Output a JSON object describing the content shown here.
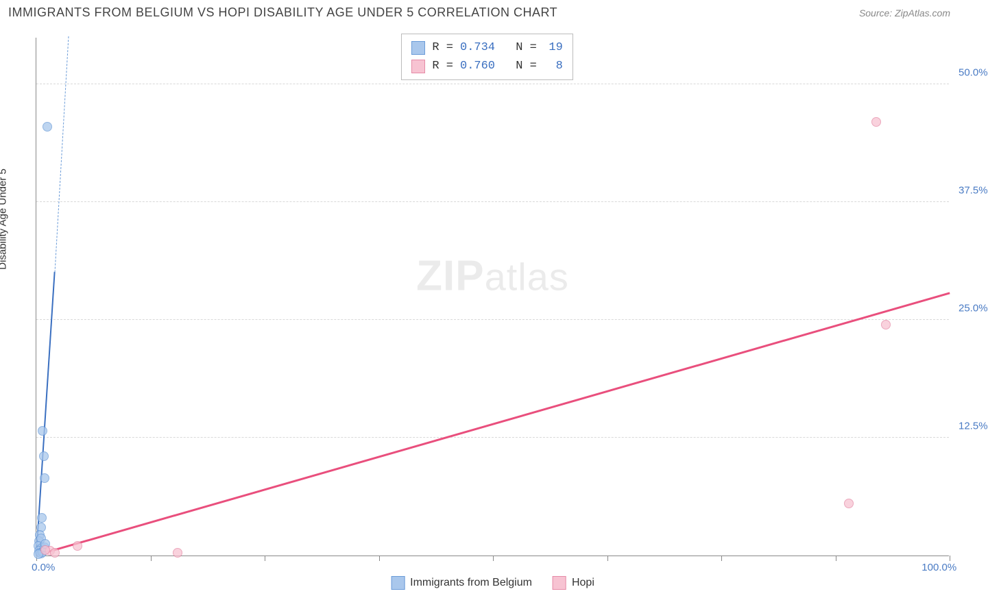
{
  "title": "IMMIGRANTS FROM BELGIUM VS HOPI DISABILITY AGE UNDER 5 CORRELATION CHART",
  "source": "Source: ZipAtlas.com",
  "ylabel": "Disability Age Under 5",
  "watermark_bold": "ZIP",
  "watermark_light": "atlas",
  "chart": {
    "type": "scatter",
    "background_color": "#ffffff",
    "grid_color": "#d8d8d8",
    "axis_color": "#888888",
    "label_color": "#4a7bc4",
    "xlim": [
      0,
      100
    ],
    "ylim": [
      0,
      55
    ],
    "x_ticks": [
      0,
      12.5,
      25,
      37.5,
      50,
      62.5,
      75,
      87.5,
      100
    ],
    "y_gridlines": [
      12.5,
      25,
      37.5,
      50
    ],
    "y_labels": [
      {
        "v": 12.5,
        "t": "12.5%"
      },
      {
        "v": 25,
        "t": "25.0%"
      },
      {
        "v": 37.5,
        "t": "37.5%"
      },
      {
        "v": 50,
        "t": "50.0%"
      }
    ],
    "x_labels": [
      {
        "v": 0,
        "t": "0.0%"
      },
      {
        "v": 100,
        "t": "100.0%"
      }
    ],
    "series": [
      {
        "name": "Immigrants from Belgium",
        "fill": "#a9c7ec",
        "stroke": "#6a9bd8",
        "marker_size": 14,
        "marker_opacity": 0.75,
        "points": [
          {
            "x": 1.2,
            "y": 45.5
          },
          {
            "x": 0.7,
            "y": 13.2
          },
          {
            "x": 0.8,
            "y": 10.5
          },
          {
            "x": 0.9,
            "y": 8.2
          },
          {
            "x": 0.6,
            "y": 4.0
          },
          {
            "x": 0.5,
            "y": 3.0
          },
          {
            "x": 0.4,
            "y": 2.2
          },
          {
            "x": 0.3,
            "y": 1.5
          },
          {
            "x": 0.5,
            "y": 1.8
          },
          {
            "x": 0.2,
            "y": 1.0
          },
          {
            "x": 0.6,
            "y": 0.8
          },
          {
            "x": 0.3,
            "y": 0.5
          },
          {
            "x": 0.8,
            "y": 0.6
          },
          {
            "x": 0.4,
            "y": 0.3
          },
          {
            "x": 0.5,
            "y": 0.2
          },
          {
            "x": 0.7,
            "y": 0.4
          },
          {
            "x": 0.9,
            "y": 0.9
          },
          {
            "x": 0.2,
            "y": 0.15
          },
          {
            "x": 1.0,
            "y": 1.2
          }
        ],
        "trend": {
          "x1": 0,
          "y1": 0,
          "x2": 2.0,
          "y2": 30.0,
          "color": "#3a6fc0",
          "width": 2
        },
        "trend_dash": {
          "x1": 2.0,
          "y1": 30.0,
          "x2": 3.5,
          "y2": 55.0,
          "color": "#6a9bd8",
          "width": 1.5
        }
      },
      {
        "name": "Hopi",
        "fill": "#f7c3d2",
        "stroke": "#e58aa6",
        "marker_size": 14,
        "marker_opacity": 0.75,
        "points": [
          {
            "x": 92,
            "y": 46.0
          },
          {
            "x": 93,
            "y": 24.5
          },
          {
            "x": 89,
            "y": 5.5
          },
          {
            "x": 15.5,
            "y": 0.3
          },
          {
            "x": 4.5,
            "y": 1.0
          },
          {
            "x": 1.5,
            "y": 0.5
          },
          {
            "x": 1.0,
            "y": 0.6
          },
          {
            "x": 2.0,
            "y": 0.3
          }
        ],
        "trend": {
          "x1": 0,
          "y1": 0,
          "x2": 100,
          "y2": 27.8,
          "color": "#e94f7d",
          "width": 2.5
        }
      }
    ]
  },
  "legend_top": {
    "rows": [
      {
        "swatch_fill": "#a9c7ec",
        "swatch_stroke": "#6a9bd8",
        "r": "0.734",
        "n": "19"
      },
      {
        "swatch_fill": "#f7c3d2",
        "swatch_stroke": "#e58aa6",
        "r": "0.760",
        "n": "8"
      }
    ],
    "r_label": "R =",
    "n_label": "N ="
  },
  "legend_bottom": [
    {
      "swatch_fill": "#a9c7ec",
      "swatch_stroke": "#6a9bd8",
      "label": "Immigrants from Belgium"
    },
    {
      "swatch_fill": "#f7c3d2",
      "swatch_stroke": "#e58aa6",
      "label": "Hopi"
    }
  ]
}
